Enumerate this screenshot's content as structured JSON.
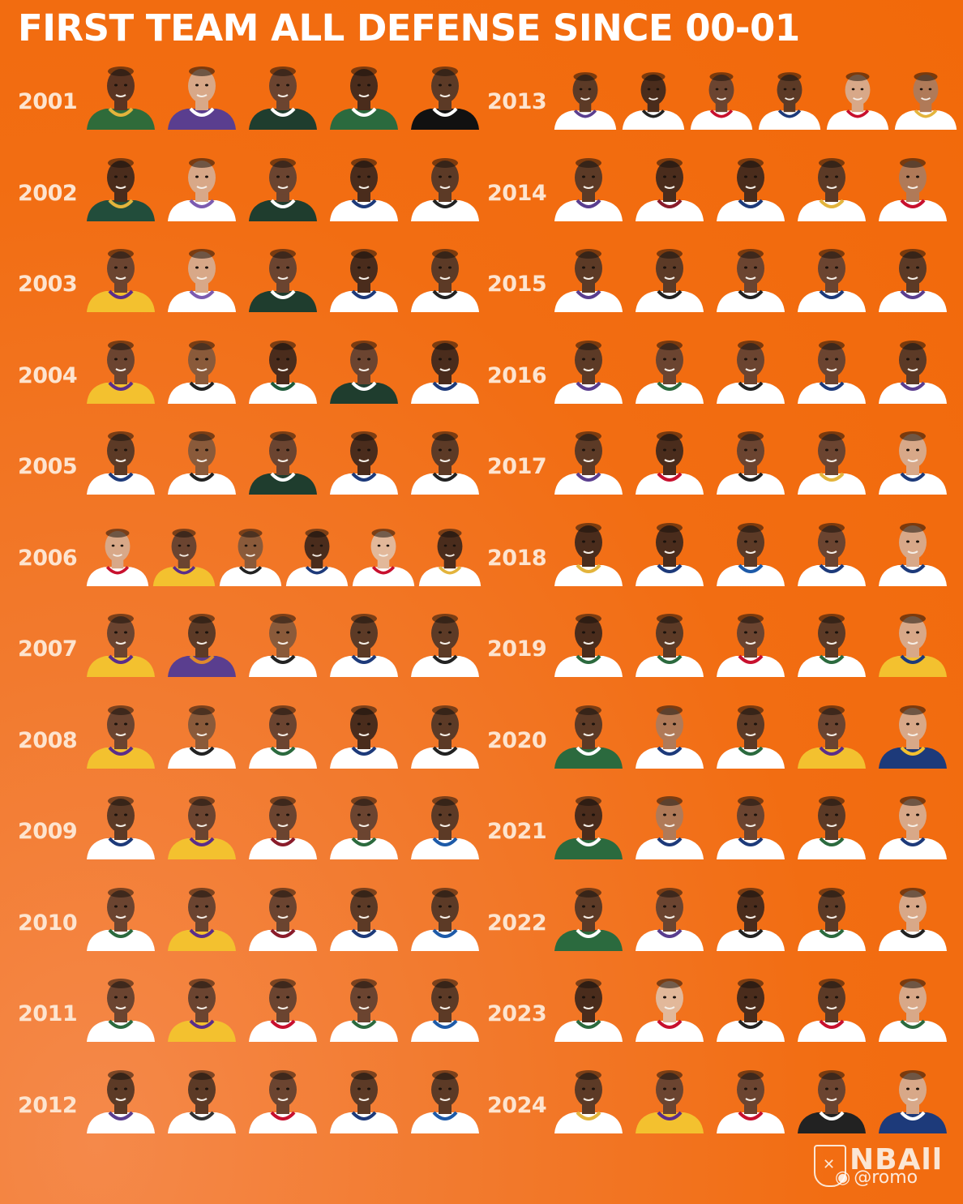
{
  "title": "FIRST TEAM ALL DEFENSE SINCE 00-01",
  "left_column": [
    {
      "year": "2001",
      "players": [
        {
          "skin": "#5a3422",
          "jersey": "#2f6b3a",
          "trim": "#e3b43c"
        },
        {
          "skin": "#d8a888",
          "jersey": "#5a3e8f",
          "trim": "#ffffff"
        },
        {
          "skin": "#6b4430",
          "jersey": "#1f3d2e",
          "trim": "#ffffff"
        },
        {
          "skin": "#4a2c1c",
          "jersey": "#2b6a3e",
          "trim": "#ffffff"
        },
        {
          "skin": "#5c3a26",
          "jersey": "#111111",
          "trim": "#ffffff"
        }
      ]
    },
    {
      "year": "2002",
      "players": [
        {
          "skin": "#4a2c1c",
          "jersey": "#224d3b",
          "trim": "#e3b43c"
        },
        {
          "skin": "#d8a888",
          "jersey": "#ffffff",
          "trim": "#7c5bb0"
        },
        {
          "skin": "#6b4430",
          "jersey": "#1f3d2e",
          "trim": "#ffffff"
        },
        {
          "skin": "#4a2c1c",
          "jersey": "#ffffff",
          "trim": "#1d3a7a"
        },
        {
          "skin": "#5c3a26",
          "jersey": "#ffffff",
          "trim": "#222222"
        }
      ]
    },
    {
      "year": "2003",
      "players": [
        {
          "skin": "#6b4430",
          "jersey": "#f3c12f",
          "trim": "#5a2d8a"
        },
        {
          "skin": "#d8a888",
          "jersey": "#ffffff",
          "trim": "#7c5bb0"
        },
        {
          "skin": "#6b4430",
          "jersey": "#1f3d2e",
          "trim": "#ffffff"
        },
        {
          "skin": "#4a2c1c",
          "jersey": "#ffffff",
          "trim": "#1d3a7a"
        },
        {
          "skin": "#5c3a26",
          "jersey": "#ffffff",
          "trim": "#222222"
        }
      ]
    },
    {
      "year": "2004",
      "players": [
        {
          "skin": "#6b4430",
          "jersey": "#f3c12f",
          "trim": "#5a2d8a"
        },
        {
          "skin": "#8a5a3a",
          "jersey": "#ffffff",
          "trim": "#222222"
        },
        {
          "skin": "#4a2c1c",
          "jersey": "#ffffff",
          "trim": "#1d5a3a"
        },
        {
          "skin": "#6b4430",
          "jersey": "#1f3d2e",
          "trim": "#ffffff"
        },
        {
          "skin": "#4a2c1c",
          "jersey": "#ffffff",
          "trim": "#1d3a7a"
        }
      ]
    },
    {
      "year": "2005",
      "players": [
        {
          "skin": "#5c3a26",
          "jersey": "#ffffff",
          "trim": "#1d3a7a"
        },
        {
          "skin": "#8a5a3a",
          "jersey": "#ffffff",
          "trim": "#222222"
        },
        {
          "skin": "#6b4430",
          "jersey": "#1f3d2e",
          "trim": "#ffffff"
        },
        {
          "skin": "#4a2c1c",
          "jersey": "#ffffff",
          "trim": "#1d3a7a"
        },
        {
          "skin": "#5c3a26",
          "jersey": "#ffffff",
          "trim": "#222222"
        }
      ]
    },
    {
      "year": "2006",
      "players": [
        {
          "skin": "#d8a888",
          "jersey": "#ffffff",
          "trim": "#c8102e"
        },
        {
          "skin": "#6b4430",
          "jersey": "#f3c12f",
          "trim": "#5a2d8a"
        },
        {
          "skin": "#8a5a3a",
          "jersey": "#ffffff",
          "trim": "#222222"
        },
        {
          "skin": "#4a2c1c",
          "jersey": "#ffffff",
          "trim": "#1d3a7a"
        },
        {
          "skin": "#e2b89a",
          "jersey": "#ffffff",
          "trim": "#c8102e"
        },
        {
          "skin": "#4a2c1c",
          "jersey": "#ffffff",
          "trim": "#e3b43c"
        }
      ]
    },
    {
      "year": "2007",
      "players": [
        {
          "skin": "#6b4430",
          "jersey": "#f3c12f",
          "trim": "#5a2d8a"
        },
        {
          "skin": "#5c3a26",
          "jersey": "#5a3e8f",
          "trim": "#e08a2c"
        },
        {
          "skin": "#8a5a3a",
          "jersey": "#ffffff",
          "trim": "#222222"
        },
        {
          "skin": "#5c3a26",
          "jersey": "#ffffff",
          "trim": "#1d3a7a"
        },
        {
          "skin": "#5c3a26",
          "jersey": "#ffffff",
          "trim": "#222222"
        }
      ]
    },
    {
      "year": "2008",
      "players": [
        {
          "skin": "#6b4430",
          "jersey": "#f3c12f",
          "trim": "#5a2d8a"
        },
        {
          "skin": "#8a5a3a",
          "jersey": "#ffffff",
          "trim": "#222222"
        },
        {
          "skin": "#6b4430",
          "jersey": "#ffffff",
          "trim": "#2b6a3e"
        },
        {
          "skin": "#4a2c1c",
          "jersey": "#ffffff",
          "trim": "#1d3a7a"
        },
        {
          "skin": "#5c3a26",
          "jersey": "#ffffff",
          "trim": "#222222"
        }
      ]
    },
    {
      "year": "2009",
      "players": [
        {
          "skin": "#5c3a26",
          "jersey": "#ffffff",
          "trim": "#1d3a7a"
        },
        {
          "skin": "#6b4430",
          "jersey": "#f3c12f",
          "trim": "#5a2d8a"
        },
        {
          "skin": "#6b4430",
          "jersey": "#ffffff",
          "trim": "#8a1c2b"
        },
        {
          "skin": "#6b4430",
          "jersey": "#ffffff",
          "trim": "#2b6a3e"
        },
        {
          "skin": "#5c3a26",
          "jersey": "#ffffff",
          "trim": "#1d5aa8"
        }
      ]
    },
    {
      "year": "2010",
      "players": [
        {
          "skin": "#6b4430",
          "jersey": "#ffffff",
          "trim": "#2b6a3e"
        },
        {
          "skin": "#6b4430",
          "jersey": "#f3c12f",
          "trim": "#5a2d8a"
        },
        {
          "skin": "#6b4430",
          "jersey": "#ffffff",
          "trim": "#8a1c2b"
        },
        {
          "skin": "#5c3a26",
          "jersey": "#ffffff",
          "trim": "#1d3a7a"
        },
        {
          "skin": "#5c3a26",
          "jersey": "#ffffff",
          "trim": "#1d5aa8"
        }
      ]
    },
    {
      "year": "2011",
      "players": [
        {
          "skin": "#6b4430",
          "jersey": "#ffffff",
          "trim": "#2b6a3e"
        },
        {
          "skin": "#6b4430",
          "jersey": "#f3c12f",
          "trim": "#5a2d8a"
        },
        {
          "skin": "#6b4430",
          "jersey": "#ffffff",
          "trim": "#c8102e"
        },
        {
          "skin": "#6b4430",
          "jersey": "#ffffff",
          "trim": "#2b6a3e"
        },
        {
          "skin": "#5c3a26",
          "jersey": "#ffffff",
          "trim": "#1d5aa8"
        }
      ]
    },
    {
      "year": "2012",
      "players": [
        {
          "skin": "#5c3a26",
          "jersey": "#ffffff",
          "trim": "#5a3e8f"
        },
        {
          "skin": "#5c3a26",
          "jersey": "#ffffff",
          "trim": "#333333"
        },
        {
          "skin": "#6b4430",
          "jersey": "#ffffff",
          "trim": "#c8102e"
        },
        {
          "skin": "#5c3a26",
          "jersey": "#ffffff",
          "trim": "#1d3a7a"
        },
        {
          "skin": "#5c3a26",
          "jersey": "#ffffff",
          "trim": "#1d5aa8"
        }
      ]
    }
  ],
  "right_column": [
    {
      "year": "2013",
      "players": [
        {
          "skin": "#5c3a26",
          "jersey": "#ffffff",
          "trim": "#5a3e8f"
        },
        {
          "skin": "#4a2c1c",
          "jersey": "#ffffff",
          "trim": "#222222"
        },
        {
          "skin": "#6b4430",
          "jersey": "#ffffff",
          "trim": "#c8102e"
        },
        {
          "skin": "#5c3a26",
          "jersey": "#ffffff",
          "trim": "#1d3a7a"
        },
        {
          "skin": "#d8a888",
          "jersey": "#ffffff",
          "trim": "#c8102e"
        },
        {
          "skin": "#b07a58",
          "jersey": "#ffffff",
          "trim": "#e3b43c"
        }
      ]
    },
    {
      "year": "2014",
      "players": [
        {
          "skin": "#5c3a26",
          "jersey": "#ffffff",
          "trim": "#5a3e8f"
        },
        {
          "skin": "#4a2c1c",
          "jersey": "#ffffff",
          "trim": "#8a1c2b"
        },
        {
          "skin": "#4a2c1c",
          "jersey": "#ffffff",
          "trim": "#1d3a7a"
        },
        {
          "skin": "#5c3a26",
          "jersey": "#ffffff",
          "trim": "#e3b43c"
        },
        {
          "skin": "#b07a58",
          "jersey": "#ffffff",
          "trim": "#c8102e"
        }
      ]
    },
    {
      "year": "2015",
      "players": [
        {
          "skin": "#5c3a26",
          "jersey": "#ffffff",
          "trim": "#5a3e8f"
        },
        {
          "skin": "#5c3a26",
          "jersey": "#ffffff",
          "trim": "#222222"
        },
        {
          "skin": "#6b4430",
          "jersey": "#ffffff",
          "trim": "#222222"
        },
        {
          "skin": "#6b4430",
          "jersey": "#ffffff",
          "trim": "#1d3a7a"
        },
        {
          "skin": "#5c3a26",
          "jersey": "#ffffff",
          "trim": "#5a3e8f"
        }
      ]
    },
    {
      "year": "2016",
      "players": [
        {
          "skin": "#5c3a26",
          "jersey": "#ffffff",
          "trim": "#5a3e8f"
        },
        {
          "skin": "#6b4430",
          "jersey": "#ffffff",
          "trim": "#2b6a3e"
        },
        {
          "skin": "#6b4430",
          "jersey": "#ffffff",
          "trim": "#222222"
        },
        {
          "skin": "#6b4430",
          "jersey": "#ffffff",
          "trim": "#1d3a7a"
        },
        {
          "skin": "#5c3a26",
          "jersey": "#ffffff",
          "trim": "#5a3e8f"
        }
      ]
    },
    {
      "year": "2017",
      "players": [
        {
          "skin": "#5c3a26",
          "jersey": "#ffffff",
          "trim": "#5a3e8f"
        },
        {
          "skin": "#4a2c1c",
          "jersey": "#ffffff",
          "trim": "#c8102e"
        },
        {
          "skin": "#6b4430",
          "jersey": "#ffffff",
          "trim": "#222222"
        },
        {
          "skin": "#6b4430",
          "jersey": "#ffffff",
          "trim": "#e3b43c"
        },
        {
          "skin": "#d8a888",
          "jersey": "#ffffff",
          "trim": "#1d3a7a"
        }
      ]
    },
    {
      "year": "2018",
      "players": [
        {
          "skin": "#4a2c1c",
          "jersey": "#ffffff",
          "trim": "#e3b43c"
        },
        {
          "skin": "#4a2c1c",
          "jersey": "#ffffff",
          "trim": "#1d3a7a"
        },
        {
          "skin": "#5c3a26",
          "jersey": "#ffffff",
          "trim": "#1d5aa8"
        },
        {
          "skin": "#6b4430",
          "jersey": "#ffffff",
          "trim": "#1d3a7a"
        },
        {
          "skin": "#d8a888",
          "jersey": "#ffffff",
          "trim": "#1d3a7a"
        }
      ]
    },
    {
      "year": "2019",
      "players": [
        {
          "skin": "#4a2c1c",
          "jersey": "#ffffff",
          "trim": "#2b6a3e"
        },
        {
          "skin": "#5c3a26",
          "jersey": "#ffffff",
          "trim": "#2b6a3e"
        },
        {
          "skin": "#6b4430",
          "jersey": "#ffffff",
          "trim": "#c8102e"
        },
        {
          "skin": "#5c3a26",
          "jersey": "#ffffff",
          "trim": "#2b6a3e"
        },
        {
          "skin": "#d8a888",
          "jersey": "#f3c12f",
          "trim": "#1d3a7a"
        }
      ]
    },
    {
      "year": "2020",
      "players": [
        {
          "skin": "#5c3a26",
          "jersey": "#2b6a3e",
          "trim": "#ffffff"
        },
        {
          "skin": "#b07a58",
          "jersey": "#ffffff",
          "trim": "#1d3a7a"
        },
        {
          "skin": "#5c3a26",
          "jersey": "#ffffff",
          "trim": "#2b6a3e"
        },
        {
          "skin": "#6b4430",
          "jersey": "#f3c12f",
          "trim": "#5a2d8a"
        },
        {
          "skin": "#d8a888",
          "jersey": "#1d3a7a",
          "trim": "#f3c12f"
        }
      ]
    },
    {
      "year": "2021",
      "players": [
        {
          "skin": "#4a2c1c",
          "jersey": "#2b6a3e",
          "trim": "#ffffff"
        },
        {
          "skin": "#b07a58",
          "jersey": "#ffffff",
          "trim": "#1d3a7a"
        },
        {
          "skin": "#6b4430",
          "jersey": "#ffffff",
          "trim": "#1d3a7a"
        },
        {
          "skin": "#5c3a26",
          "jersey": "#ffffff",
          "trim": "#2b6a3e"
        },
        {
          "skin": "#d8a888",
          "jersey": "#ffffff",
          "trim": "#1d3a7a"
        }
      ]
    },
    {
      "year": "2022",
      "players": [
        {
          "skin": "#5c3a26",
          "jersey": "#2b6a3e",
          "trim": "#ffffff"
        },
        {
          "skin": "#6b4430",
          "jersey": "#ffffff",
          "trim": "#5a3e8f"
        },
        {
          "skin": "#4a2c1c",
          "jersey": "#ffffff",
          "trim": "#222222"
        },
        {
          "skin": "#5c3a26",
          "jersey": "#ffffff",
          "trim": "#2b6a3e"
        },
        {
          "skin": "#d8a888",
          "jersey": "#ffffff",
          "trim": "#222222"
        }
      ]
    },
    {
      "year": "2023",
      "players": [
        {
          "skin": "#4a2c1c",
          "jersey": "#ffffff",
          "trim": "#2b6a3e"
        },
        {
          "skin": "#e2b89a",
          "jersey": "#ffffff",
          "trim": "#c8102e"
        },
        {
          "skin": "#4a2c1c",
          "jersey": "#ffffff",
          "trim": "#222222"
        },
        {
          "skin": "#5c3a26",
          "jersey": "#ffffff",
          "trim": "#c8102e"
        },
        {
          "skin": "#d8a888",
          "jersey": "#ffffff",
          "trim": "#2b6a3e"
        }
      ]
    },
    {
      "year": "2024",
      "players": [
        {
          "skin": "#5c3a26",
          "jersey": "#ffffff",
          "trim": "#e3b43c"
        },
        {
          "skin": "#6b4430",
          "jersey": "#f3c12f",
          "trim": "#5a2d8a"
        },
        {
          "skin": "#6b4430",
          "jersey": "#ffffff",
          "trim": "#c8102e"
        },
        {
          "skin": "#6b4430",
          "jersey": "#222222",
          "trim": "#ffffff"
        },
        {
          "skin": "#d8a888",
          "jersey": "#1d3a7a",
          "trim": "#ffffff"
        }
      ]
    }
  ],
  "logo": {
    "text": "NBAll"
  },
  "watermark": {
    "text": "@romo"
  },
  "colors": {
    "background": "#f26d12",
    "year_text": "#fde4cf",
    "title_text": "#ffffff"
  }
}
